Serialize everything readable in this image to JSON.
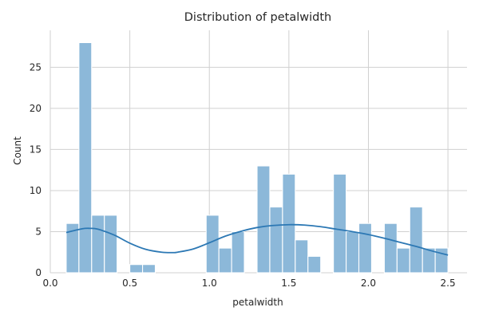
{
  "chart_data": {
    "type": "bar",
    "subtype": "histogram",
    "title": "Distribution of petalwidth",
    "xlabel": "petalwidth",
    "ylabel": "Count",
    "xlim": [
      0.0,
      2.62
    ],
    "ylim": [
      0,
      29.5
    ],
    "x_ticks": [
      0.0,
      0.5,
      1.0,
      1.5,
      2.0,
      2.5
    ],
    "x_tick_labels": [
      "0.0",
      "0.5",
      "1.0",
      "1.5",
      "2.0",
      "2.5"
    ],
    "y_ticks": [
      0,
      5,
      10,
      15,
      20,
      25
    ],
    "y_tick_labels": [
      "0",
      "5",
      "10",
      "15",
      "20",
      "25"
    ],
    "grid": true,
    "bin_range": [
      0.1,
      2.5
    ],
    "bins": 30,
    "counts": [
      6,
      28,
      7,
      7,
      0,
      1,
      1,
      0,
      0,
      0,
      0,
      7,
      3,
      5,
      0,
      13,
      8,
      12,
      4,
      2,
      0,
      12,
      5,
      6,
      0,
      6,
      3,
      8,
      3,
      3
    ],
    "kde": {
      "x": [
        0.1,
        0.2,
        0.25,
        0.3,
        0.4,
        0.5,
        0.6,
        0.7,
        0.77,
        0.8,
        0.9,
        1.0,
        1.1,
        1.2,
        1.3,
        1.4,
        1.5,
        1.6,
        1.7,
        1.8,
        1.9,
        2.0,
        2.1,
        2.2,
        2.3,
        2.4,
        2.5
      ],
      "y": [
        4.9,
        5.35,
        5.4,
        5.3,
        4.6,
        3.6,
        2.85,
        2.5,
        2.45,
        2.5,
        2.9,
        3.65,
        4.45,
        5.05,
        5.5,
        5.75,
        5.85,
        5.8,
        5.6,
        5.3,
        5.0,
        4.65,
        4.2,
        3.7,
        3.2,
        2.65,
        2.15
      ]
    },
    "colors": {
      "bar_fill": "#8cb8d9",
      "kde_line": "#2c78b4",
      "grid": "#d0d0d0",
      "text": "#262626"
    }
  }
}
